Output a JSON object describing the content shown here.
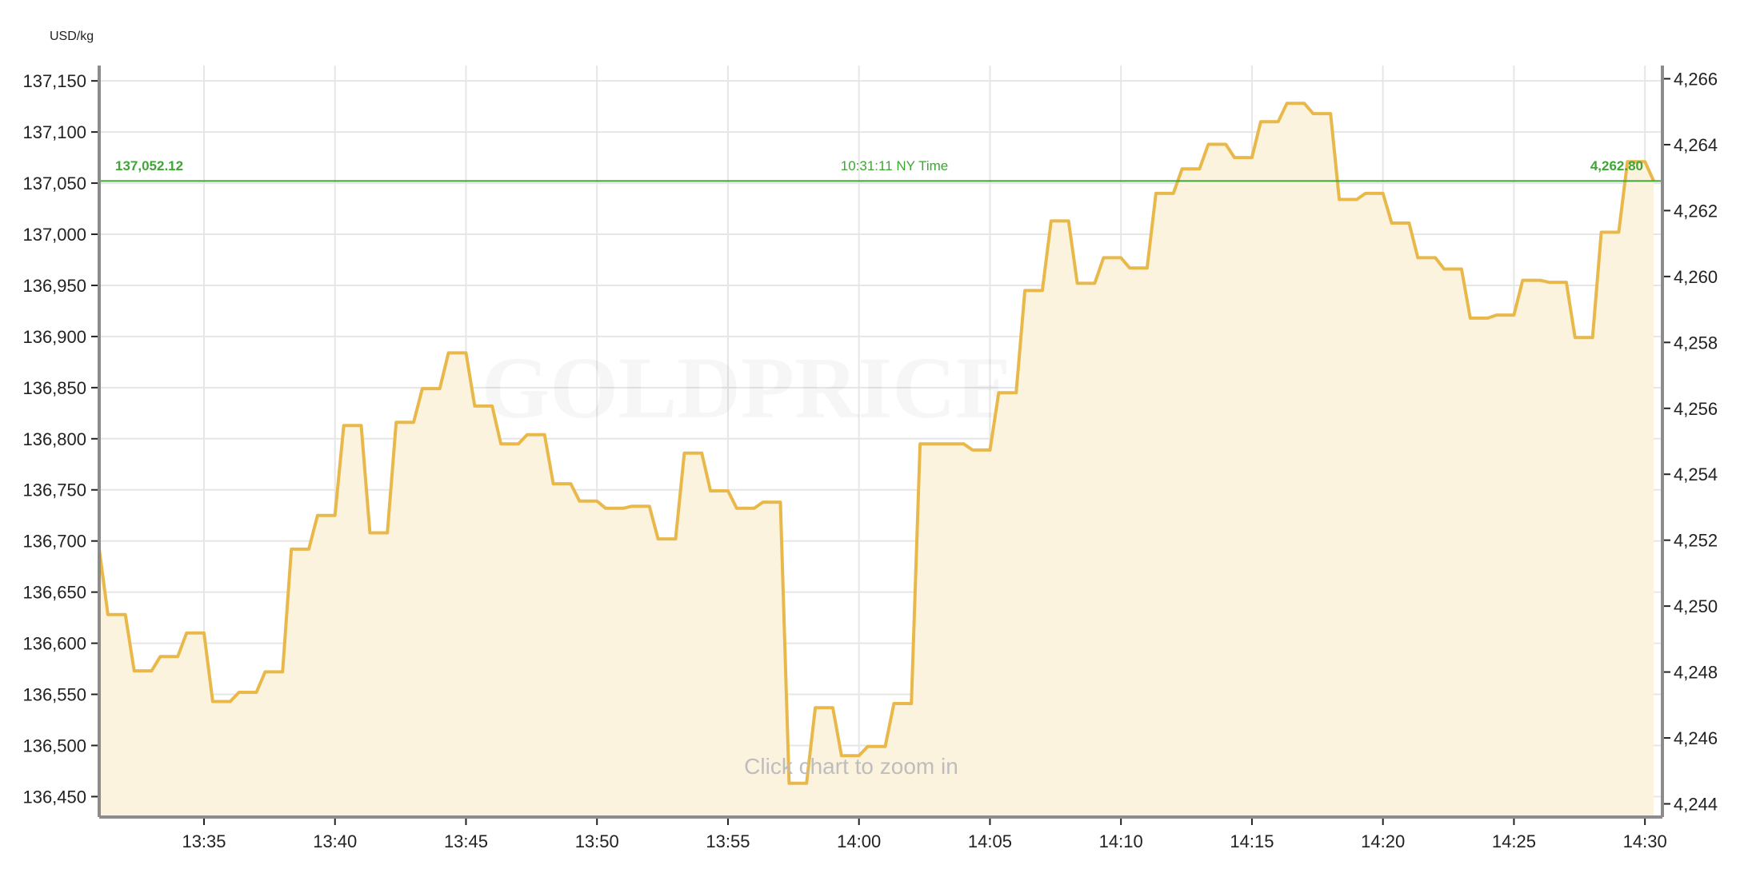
{
  "chart_data": {
    "type": "area",
    "unit_label": "USD/kg",
    "watermark": "GOLDPRICE.ORG",
    "hint": "Click chart to zoom in",
    "ylim": [
      136430,
      137165
    ],
    "ylim_right": [
      4243.6,
      4266.4
    ],
    "grid": true,
    "y_ticks": [
      137150,
      137100,
      137050,
      137000,
      136950,
      136900,
      136850,
      136800,
      136750,
      136700,
      136650,
      136600,
      136550,
      136500,
      136450
    ],
    "y_tick_labels": [
      "137,150",
      "137,100",
      "137,050",
      "137,000",
      "136,950",
      "136,900",
      "136,850",
      "136,800",
      "136,750",
      "136,700",
      "136,650",
      "136,600",
      "136,550",
      "136,500",
      "136,450"
    ],
    "y_right_ticks": [
      4266,
      4264,
      4262,
      4260,
      4258,
      4256,
      4254,
      4252,
      4250,
      4248,
      4246,
      4244
    ],
    "y_right_tick_labels": [
      "4,266",
      "4,264",
      "4,262",
      "4,260",
      "4,258",
      "4,256",
      "4,254",
      "4,252",
      "4,250",
      "4,248",
      "4,246",
      "4,244"
    ],
    "x_ticks": [
      "13:35",
      "13:40",
      "13:45",
      "13:50",
      "13:55",
      "14:00",
      "14:05",
      "14:10",
      "14:15",
      "14:20",
      "14:25",
      "14:30"
    ],
    "x_range": [
      "13:31",
      "14:30:40"
    ],
    "reference_line": {
      "value": 137052.12,
      "left_label": "137,052.12",
      "center_label": "10:31:11 NY Time",
      "right_label": "4,262.80"
    },
    "colors": {
      "line": "#e8b94a",
      "fill": "#fcf3de",
      "reference": "#3fa535",
      "grid": "#e6e6e6",
      "axis": "#8c8c8c"
    },
    "series": [
      {
        "values": [
          [
            "13:31:00",
            136692
          ],
          [
            "13:31:20",
            136628
          ],
          [
            "13:32:00",
            136628
          ],
          [
            "13:32:20",
            136573
          ],
          [
            "13:33:00",
            136573
          ],
          [
            "13:33:20",
            136587
          ],
          [
            "13:34:00",
            136587
          ],
          [
            "13:34:20",
            136610
          ],
          [
            "13:35:00",
            136610
          ],
          [
            "13:35:20",
            136543
          ],
          [
            "13:36:00",
            136543
          ],
          [
            "13:36:20",
            136552
          ],
          [
            "13:37:00",
            136552
          ],
          [
            "13:37:20",
            136572
          ],
          [
            "13:38:00",
            136572
          ],
          [
            "13:38:20",
            136692
          ],
          [
            "13:39:00",
            136692
          ],
          [
            "13:39:20",
            136725
          ],
          [
            "13:40:00",
            136725
          ],
          [
            "13:40:20",
            136813
          ],
          [
            "13:41:00",
            136813
          ],
          [
            "13:41:20",
            136708
          ],
          [
            "13:42:00",
            136708
          ],
          [
            "13:42:20",
            136816
          ],
          [
            "13:43:00",
            136816
          ],
          [
            "13:43:20",
            136849
          ],
          [
            "13:44:00",
            136849
          ],
          [
            "13:44:20",
            136884
          ],
          [
            "13:45:00",
            136884
          ],
          [
            "13:45:20",
            136832
          ],
          [
            "13:46:00",
            136832
          ],
          [
            "13:46:20",
            136795
          ],
          [
            "13:47:00",
            136795
          ],
          [
            "13:47:20",
            136804
          ],
          [
            "13:48:00",
            136804
          ],
          [
            "13:48:20",
            136756
          ],
          [
            "13:49:00",
            136756
          ],
          [
            "13:49:20",
            136739
          ],
          [
            "13:50:00",
            136739
          ],
          [
            "13:50:20",
            136732
          ],
          [
            "13:51:00",
            136732
          ],
          [
            "13:51:20",
            136734
          ],
          [
            "13:52:00",
            136734
          ],
          [
            "13:52:20",
            136702
          ],
          [
            "13:53:00",
            136702
          ],
          [
            "13:53:20",
            136786
          ],
          [
            "13:54:00",
            136786
          ],
          [
            "13:54:20",
            136749
          ],
          [
            "13:55:00",
            136749
          ],
          [
            "13:55:20",
            136732
          ],
          [
            "13:56:00",
            136732
          ],
          [
            "13:56:20",
            136738
          ],
          [
            "13:57:00",
            136738
          ],
          [
            "13:57:20",
            136463
          ],
          [
            "13:58:00",
            136463
          ],
          [
            "13:58:20",
            136537
          ],
          [
            "13:59:00",
            136537
          ],
          [
            "13:59:20",
            136490
          ],
          [
            "14:00:00",
            136490
          ],
          [
            "14:00:20",
            136499
          ],
          [
            "14:01:00",
            136499
          ],
          [
            "14:01:20",
            136541
          ],
          [
            "14:02:00",
            136541
          ],
          [
            "14:02:20",
            136795
          ],
          [
            "14:03:00",
            136795
          ],
          [
            "14:04:00",
            136795
          ],
          [
            "14:04:20",
            136789
          ],
          [
            "14:05:00",
            136789
          ],
          [
            "14:05:20",
            136845
          ],
          [
            "14:06:00",
            136845
          ],
          [
            "14:06:20",
            136945
          ],
          [
            "14:07:00",
            136945
          ],
          [
            "14:07:20",
            137013
          ],
          [
            "14:08:00",
            137013
          ],
          [
            "14:08:20",
            136952
          ],
          [
            "14:09:00",
            136952
          ],
          [
            "14:09:20",
            136977
          ],
          [
            "14:10:00",
            136977
          ],
          [
            "14:10:20",
            136967
          ],
          [
            "14:11:00",
            136967
          ],
          [
            "14:11:20",
            137040
          ],
          [
            "14:12:00",
            137040
          ],
          [
            "14:12:20",
            137064
          ],
          [
            "14:13:00",
            137064
          ],
          [
            "14:13:20",
            137088
          ],
          [
            "14:14:00",
            137088
          ],
          [
            "14:14:20",
            137075
          ],
          [
            "14:15:00",
            137075
          ],
          [
            "14:15:20",
            137110
          ],
          [
            "14:16:00",
            137110
          ],
          [
            "14:16:20",
            137128
          ],
          [
            "14:17:00",
            137128
          ],
          [
            "14:17:20",
            137118
          ],
          [
            "14:18:00",
            137118
          ],
          [
            "14:18:20",
            137034
          ],
          [
            "14:19:00",
            137034
          ],
          [
            "14:19:20",
            137040
          ],
          [
            "14:20:00",
            137040
          ],
          [
            "14:20:20",
            137011
          ],
          [
            "14:21:00",
            137011
          ],
          [
            "14:21:20",
            136977
          ],
          [
            "14:22:00",
            136977
          ],
          [
            "14:22:20",
            136966
          ],
          [
            "14:23:00",
            136966
          ],
          [
            "14:23:20",
            136918
          ],
          [
            "14:24:00",
            136918
          ],
          [
            "14:24:20",
            136921
          ],
          [
            "14:25:00",
            136921
          ],
          [
            "14:25:20",
            136955
          ],
          [
            "14:26:00",
            136955
          ],
          [
            "14:26:20",
            136953
          ],
          [
            "14:27:00",
            136953
          ],
          [
            "14:27:20",
            136899
          ],
          [
            "14:28:00",
            136899
          ],
          [
            "14:28:20",
            137002
          ],
          [
            "14:29:00",
            137002
          ],
          [
            "14:29:20",
            137071
          ],
          [
            "14:30:00",
            137071
          ],
          [
            "14:30:20",
            137052
          ]
        ]
      }
    ]
  }
}
